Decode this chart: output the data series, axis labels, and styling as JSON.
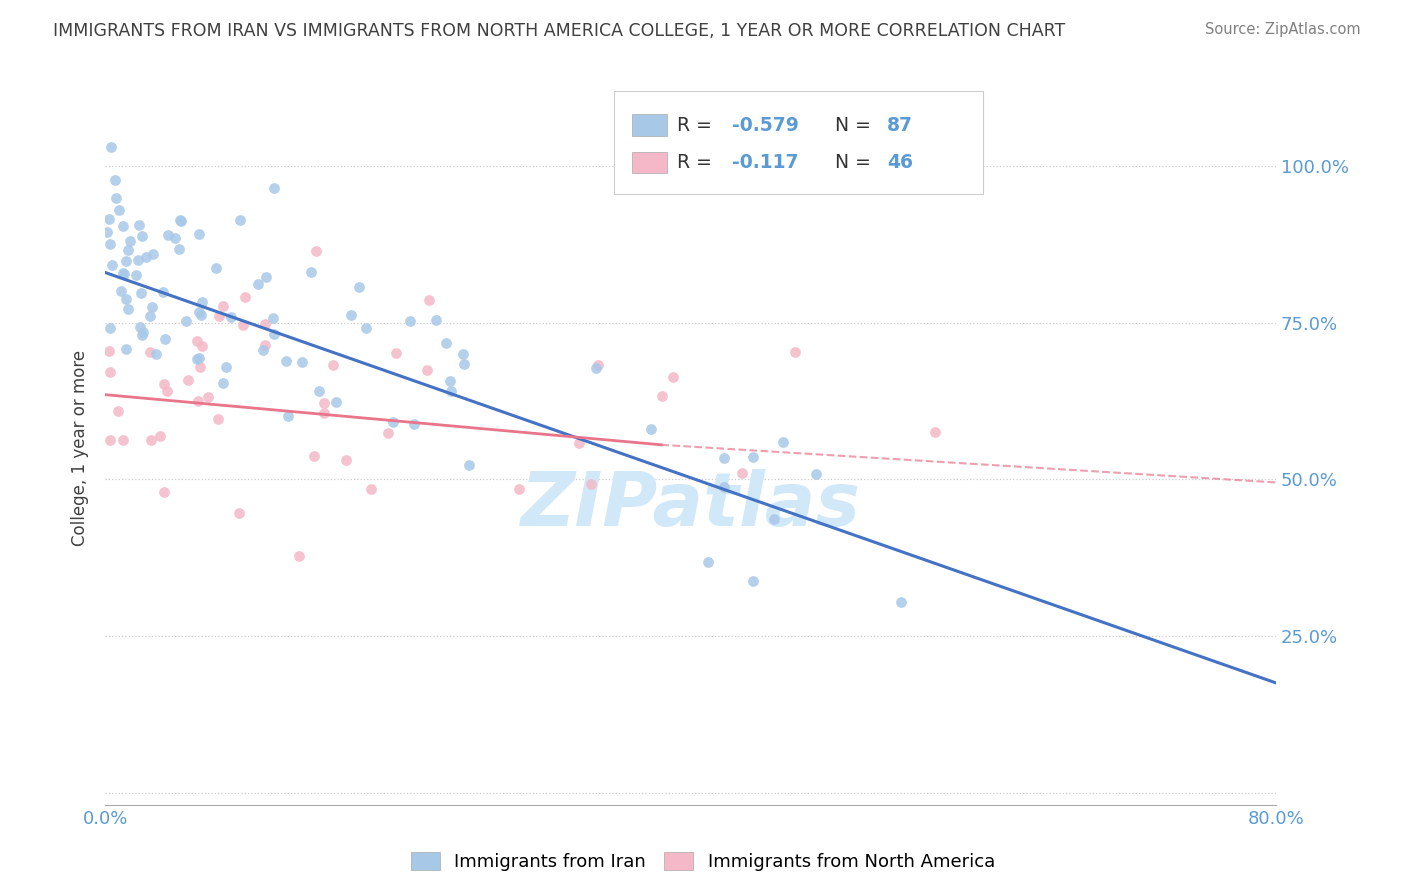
{
  "title": "IMMIGRANTS FROM IRAN VS IMMIGRANTS FROM NORTH AMERICA COLLEGE, 1 YEAR OR MORE CORRELATION CHART",
  "source": "Source: ZipAtlas.com",
  "ylabel": "College, 1 year or more",
  "legend_label_blue": "Immigrants from Iran",
  "legend_label_pink": "Immigrants from North America",
  "blue_color": "#a8c8e8",
  "pink_color": "#f4b8c8",
  "blue_line_color": "#4472c4",
  "pink_line_color": "#e8758a",
  "background_color": "#ffffff",
  "title_color": "#404040",
  "source_color": "#808080",
  "axis_label_color": "#5b9bd5",
  "watermark_color": "#d0e8f8",
  "seed": 42,
  "blue_trend": [
    0.0,
    0.83,
    0.8,
    0.175
  ],
  "pink_trend_solid": [
    0.0,
    0.635,
    0.38,
    0.555
  ],
  "pink_trend_dash": [
    0.38,
    0.555,
    0.8,
    0.495
  ],
  "xlim": [
    0.0,
    0.8
  ],
  "ylim": [
    -0.02,
    1.12
  ],
  "yticks": [
    0.0,
    0.25,
    0.5,
    0.75,
    1.0
  ],
  "ytick_labels": [
    "",
    "25.0%",
    "50.0%",
    "75.0%",
    "100.0%"
  ],
  "xticks": [
    0.0,
    0.1,
    0.2,
    0.3,
    0.4,
    0.5,
    0.6,
    0.7,
    0.8
  ],
  "xtick_labels_left": "0.0%",
  "xtick_labels_right": "80.0%"
}
